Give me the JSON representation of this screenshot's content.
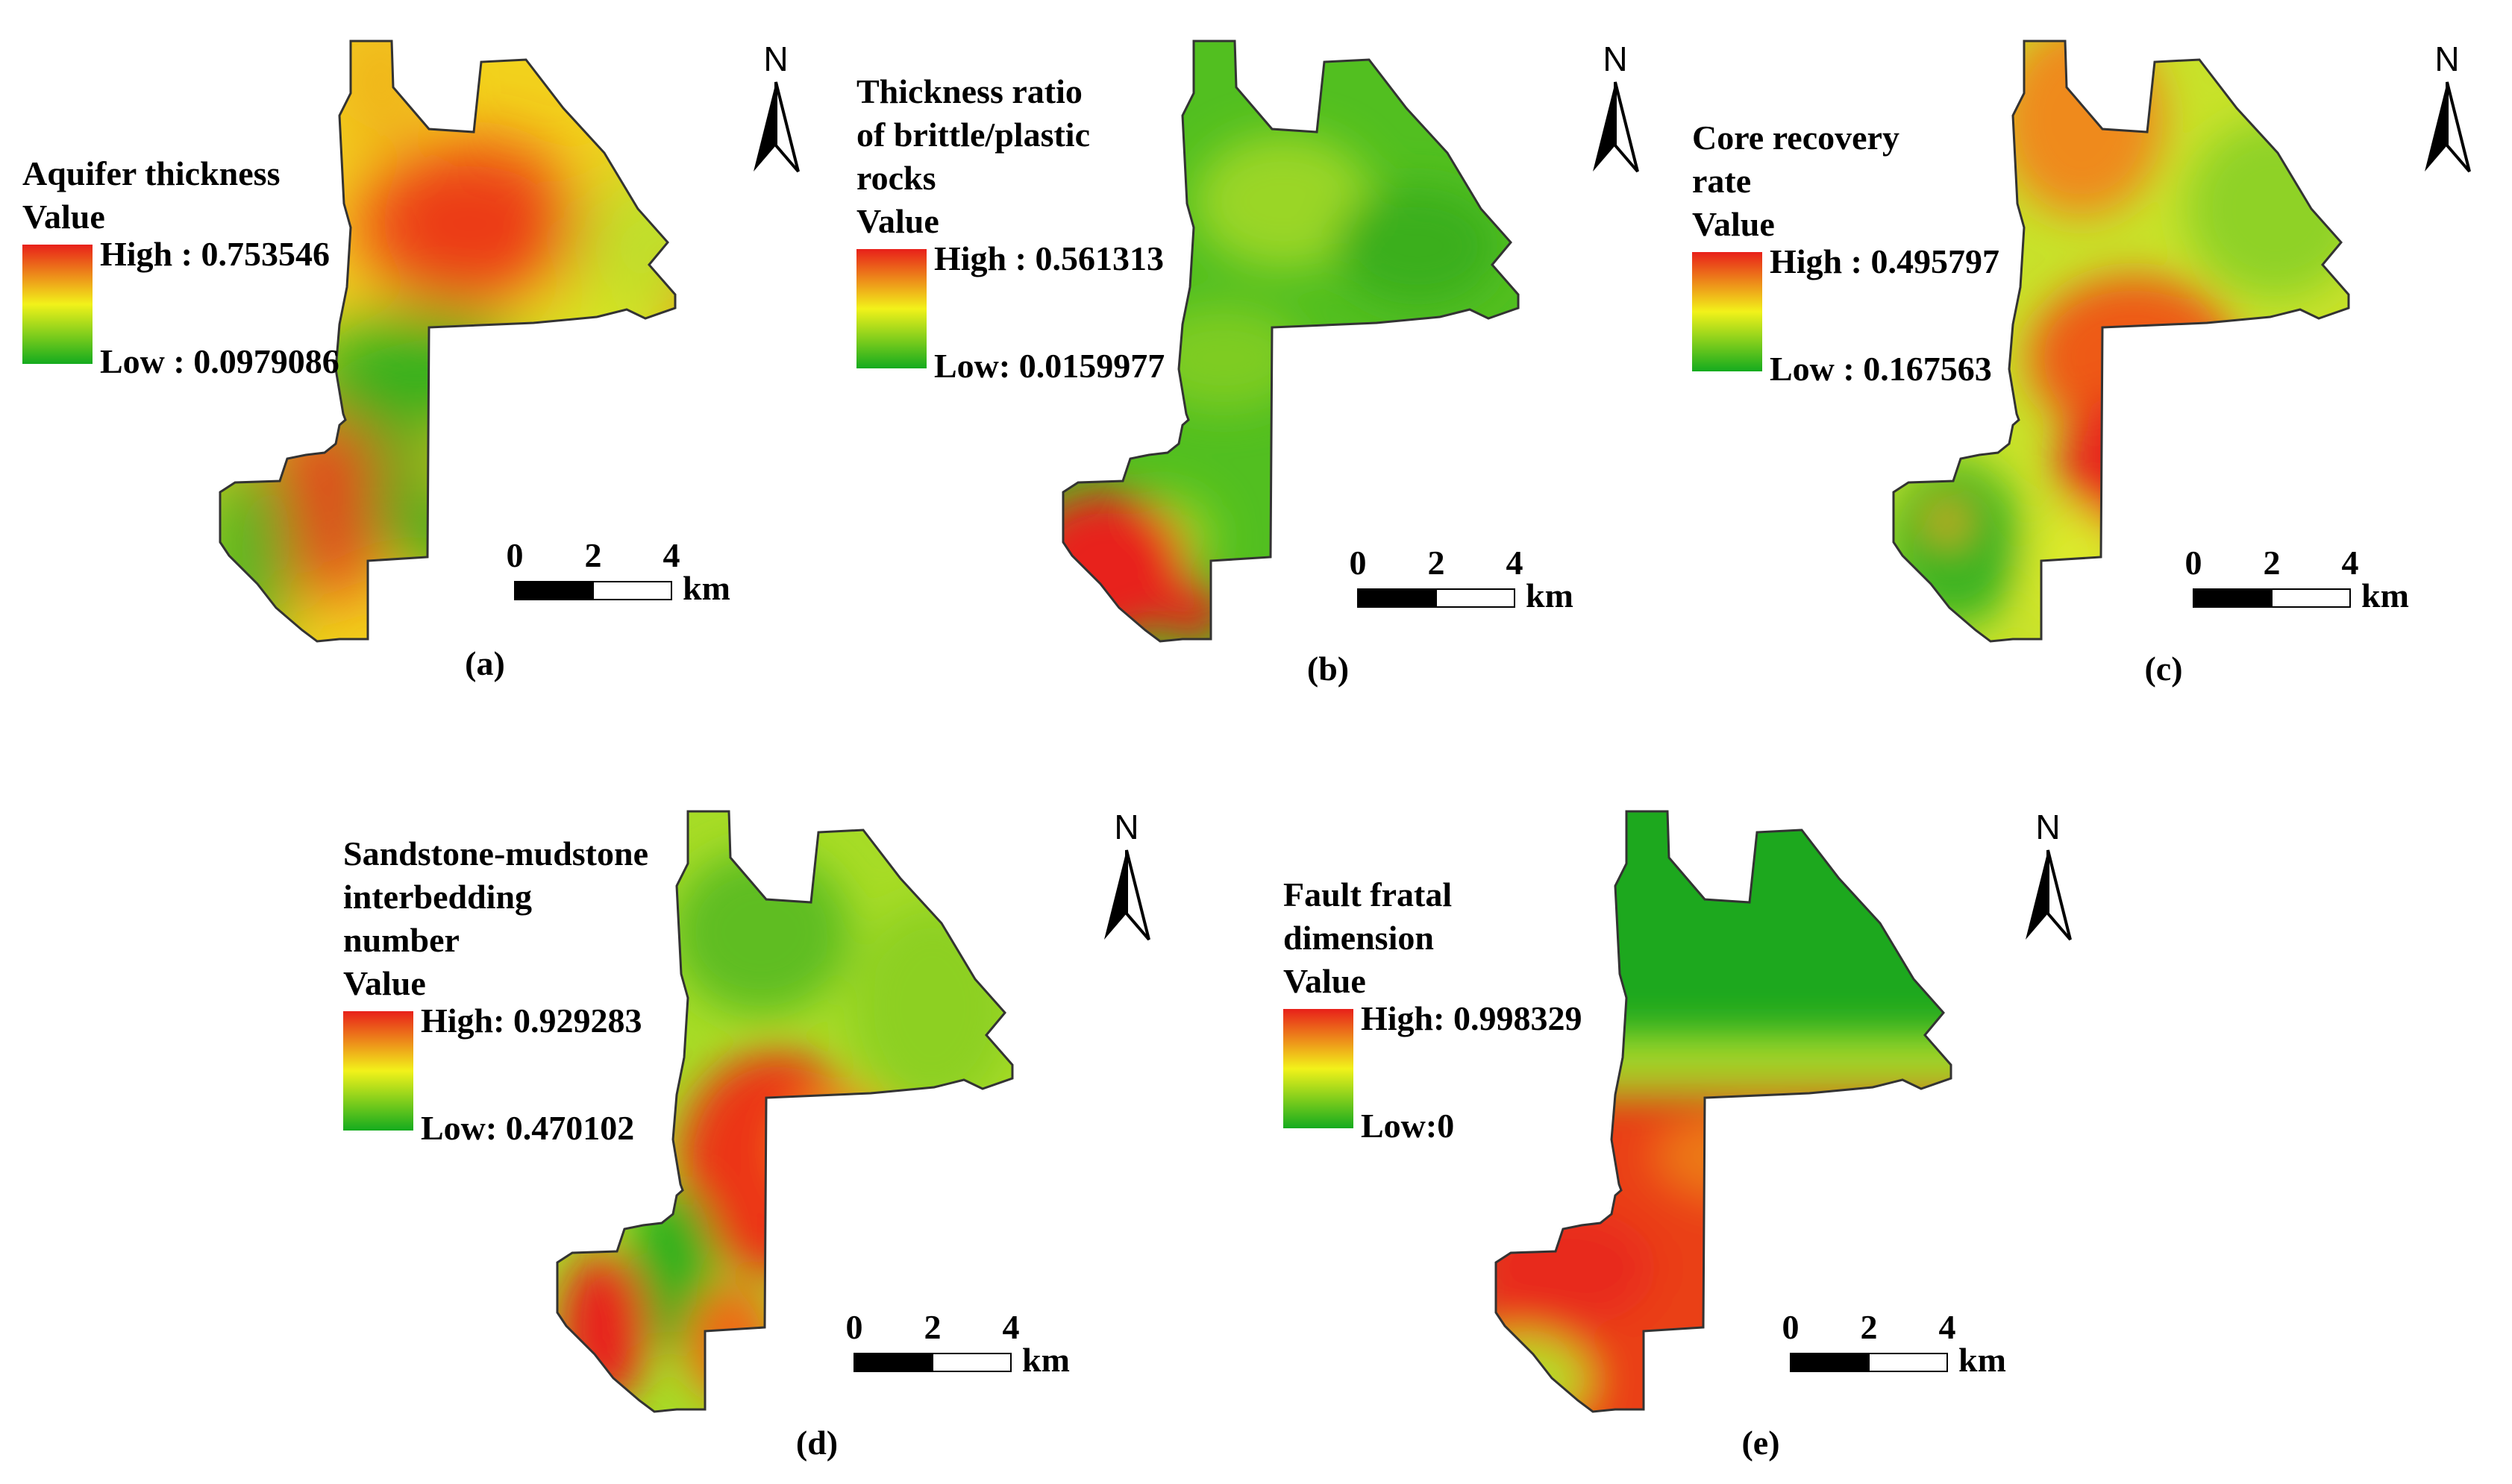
{
  "panels": [
    {
      "id": "a",
      "caption": "(a)",
      "legend_lines": [
        "Aquifer thickness",
        "Value"
      ],
      "high_label": "High : 0.753546",
      "low_label": "Low : 0.0979086",
      "high": 0.753546,
      "low": 0.0979086
    },
    {
      "id": "b",
      "caption": "(b)",
      "legend_lines": [
        "Thickness ratio",
        "of brittle/plastic",
        "rocks",
        "Value"
      ],
      "high_label": "High : 0.561313",
      "low_label": "Low: 0.0159977",
      "high": 0.561313,
      "low": 0.0159977
    },
    {
      "id": "c",
      "caption": "(c)",
      "legend_lines": [
        "Core recovery",
        "rate",
        "Value"
      ],
      "high_label": "High : 0.495797",
      "low_label": "Low : 0.167563",
      "high": 0.495797,
      "low": 0.167563
    },
    {
      "id": "d",
      "caption": "(d)",
      "legend_lines": [
        "Sandstone-mudstone",
        "interbedding",
        "number",
        "Value"
      ],
      "high_label": "High: 0.929283",
      "low_label": "Low: 0.470102",
      "high": 0.929283,
      "low": 0.470102
    },
    {
      "id": "e",
      "caption": "(e)",
      "legend_lines": [
        "Fault fratal",
        "dimension",
        "Value"
      ],
      "high_label": "High: 0.998329",
      "low_label": "Low:0",
      "high": 0.998329,
      "low": 0
    }
  ],
  "north_label": "N",
  "scale_ticks": [
    "0",
    "2",
    "4"
  ],
  "scale_unit": "km",
  "colors": {
    "high": "#e8201a",
    "mid": "#f2f21a",
    "low": "#14ab1e",
    "outline": "#333333"
  }
}
